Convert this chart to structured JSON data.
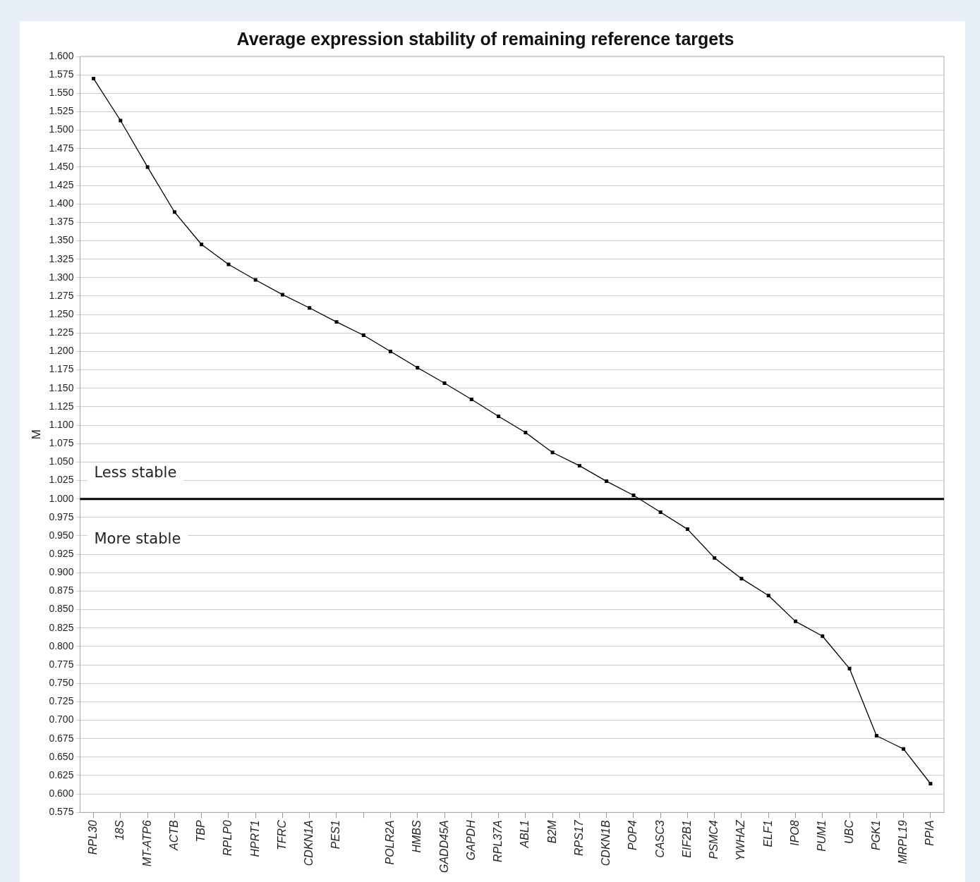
{
  "chart_data": {
    "type": "line",
    "title": "Average expression stability of remaining reference targets",
    "ylabel": "M",
    "categories": [
      "RPL30",
      "18S",
      "MT-ATP6",
      "ACTB",
      "TBP",
      "RPLP0",
      "HPRT1",
      "TFRC",
      "CDKN1A",
      "PES1",
      null,
      "POLR2A",
      "HMBS",
      "GADD45A",
      "GAPDH",
      "RPL37A",
      "ABL1",
      "B2M",
      "RPS17",
      "CDKN1B",
      "POP4",
      "CASC3",
      "EIF2B1",
      "PSMC4",
      "YWHAZ",
      "ELF1",
      "IPO8",
      "PUM1",
      "UBC",
      "PGK1",
      "MRPL19",
      "PPIA"
    ],
    "values": [
      1.57,
      1.513,
      1.45,
      1.389,
      1.345,
      1.318,
      1.297,
      1.277,
      1.259,
      1.24,
      1.222,
      1.2,
      1.178,
      1.157,
      1.135,
      1.112,
      1.09,
      1.063,
      1.045,
      1.024,
      1.005,
      0.982,
      0.959,
      0.92,
      0.892,
      0.869,
      0.834,
      0.814,
      0.77,
      0.679,
      0.661,
      0.614
    ],
    "color": "#000000",
    "marker": "square",
    "line_style": "solid",
    "grid": "y",
    "legend": false,
    "ylim": [
      0.575,
      1.6
    ],
    "yticks": [
      {
        "value": 0.575,
        "label": "0.575"
      },
      {
        "value": 0.6,
        "label": "0.600"
      },
      {
        "value": 0.625,
        "label": "0.625"
      },
      {
        "value": 0.65,
        "label": "0.650"
      },
      {
        "value": 0.675,
        "label": "0.675"
      },
      {
        "value": 0.7,
        "label": "0.700"
      },
      {
        "value": 0.725,
        "label": "0.725"
      },
      {
        "value": 0.75,
        "label": "0.750"
      },
      {
        "value": 0.775,
        "label": "0.775"
      },
      {
        "value": 0.8,
        "label": "0.800"
      },
      {
        "value": 0.825,
        "label": "0.825"
      },
      {
        "value": 0.85,
        "label": "0.850"
      },
      {
        "value": 0.875,
        "label": "0.875"
      },
      {
        "value": 0.9,
        "label": "0.900"
      },
      {
        "value": 0.925,
        "label": "0.925"
      },
      {
        "value": 0.95,
        "label": "0.950"
      },
      {
        "value": 0.975,
        "label": "0.975"
      },
      {
        "value": 1.0,
        "label": "1.000"
      },
      {
        "value": 1.025,
        "label": "1.025"
      },
      {
        "value": 1.05,
        "label": "1.050"
      },
      {
        "value": 1.075,
        "label": "1.075"
      },
      {
        "value": 1.1,
        "label": "1.100"
      },
      {
        "value": 1.125,
        "label": "1.125"
      },
      {
        "value": 1.15,
        "label": "1.150"
      },
      {
        "value": 1.175,
        "label": "1.175"
      },
      {
        "value": 1.2,
        "label": "1.200"
      },
      {
        "value": 1.225,
        "label": "1.225"
      },
      {
        "value": 1.25,
        "label": "1.250"
      },
      {
        "value": 1.275,
        "label": "1.275"
      },
      {
        "value": 1.3,
        "label": "1.300"
      },
      {
        "value": 1.325,
        "label": "1.325"
      },
      {
        "value": 1.35,
        "label": "1.350"
      },
      {
        "value": 1.375,
        "label": "1.375"
      },
      {
        "value": 1.4,
        "label": "1.400"
      },
      {
        "value": 1.425,
        "label": "1.425"
      },
      {
        "value": 1.45,
        "label": "1.450"
      },
      {
        "value": 1.475,
        "label": "1.475"
      },
      {
        "value": 1.5,
        "label": "1.500"
      },
      {
        "value": 1.525,
        "label": "1.525"
      },
      {
        "value": 1.55,
        "label": "1.550"
      },
      {
        "value": 1.575,
        "label": "1.575"
      },
      {
        "value": 1.6,
        "label": "1.600"
      }
    ],
    "ref_lines": [
      {
        "axis": "y",
        "value": 1.0,
        "color": "#000000",
        "line_style": "solid"
      }
    ],
    "annotations": [
      "Less stable",
      "More stable"
    ]
  }
}
